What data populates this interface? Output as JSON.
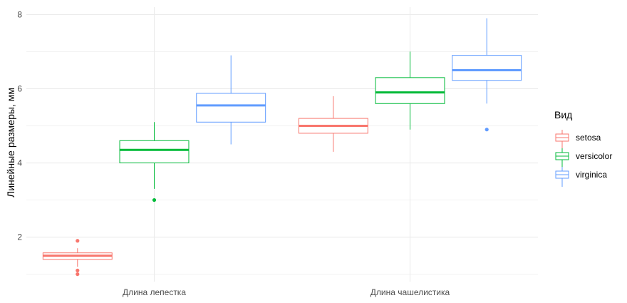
{
  "chart_data": {
    "type": "boxplot",
    "ylabel": "Линейные размеры, мм",
    "xlabel": "",
    "categories": [
      "Длина лепестка",
      "Длина чашелистика"
    ],
    "ylim": [
      0.8,
      8.2
    ],
    "yticks": [
      2,
      4,
      6,
      8
    ],
    "grid": true,
    "legend": {
      "title": "Вид",
      "position": "right"
    },
    "series": [
      {
        "name": "setosa",
        "color": "#F8766D",
        "boxes": [
          {
            "min": 1.2,
            "q1": 1.4,
            "median": 1.5,
            "q3": 1.575,
            "max": 1.7,
            "outliers": [
              1.0,
              1.1,
              1.9
            ]
          },
          {
            "min": 4.3,
            "q1": 4.8,
            "median": 5.0,
            "q3": 5.2,
            "max": 5.8,
            "outliers": []
          }
        ]
      },
      {
        "name": "versicolor",
        "color": "#00BA38",
        "boxes": [
          {
            "min": 3.3,
            "q1": 4.0,
            "median": 4.35,
            "q3": 4.6,
            "max": 5.1,
            "outliers": [
              3.0
            ]
          },
          {
            "min": 4.9,
            "q1": 5.6,
            "median": 5.9,
            "q3": 6.3,
            "max": 7.0,
            "outliers": []
          }
        ]
      },
      {
        "name": "virginica",
        "color": "#619CFF",
        "boxes": [
          {
            "min": 4.5,
            "q1": 5.1,
            "median": 5.55,
            "q3": 5.875,
            "max": 6.9,
            "outliers": []
          },
          {
            "min": 5.6,
            "q1": 6.225,
            "median": 6.5,
            "q3": 6.9,
            "max": 7.9,
            "outliers": [
              4.9
            ]
          }
        ]
      }
    ]
  }
}
